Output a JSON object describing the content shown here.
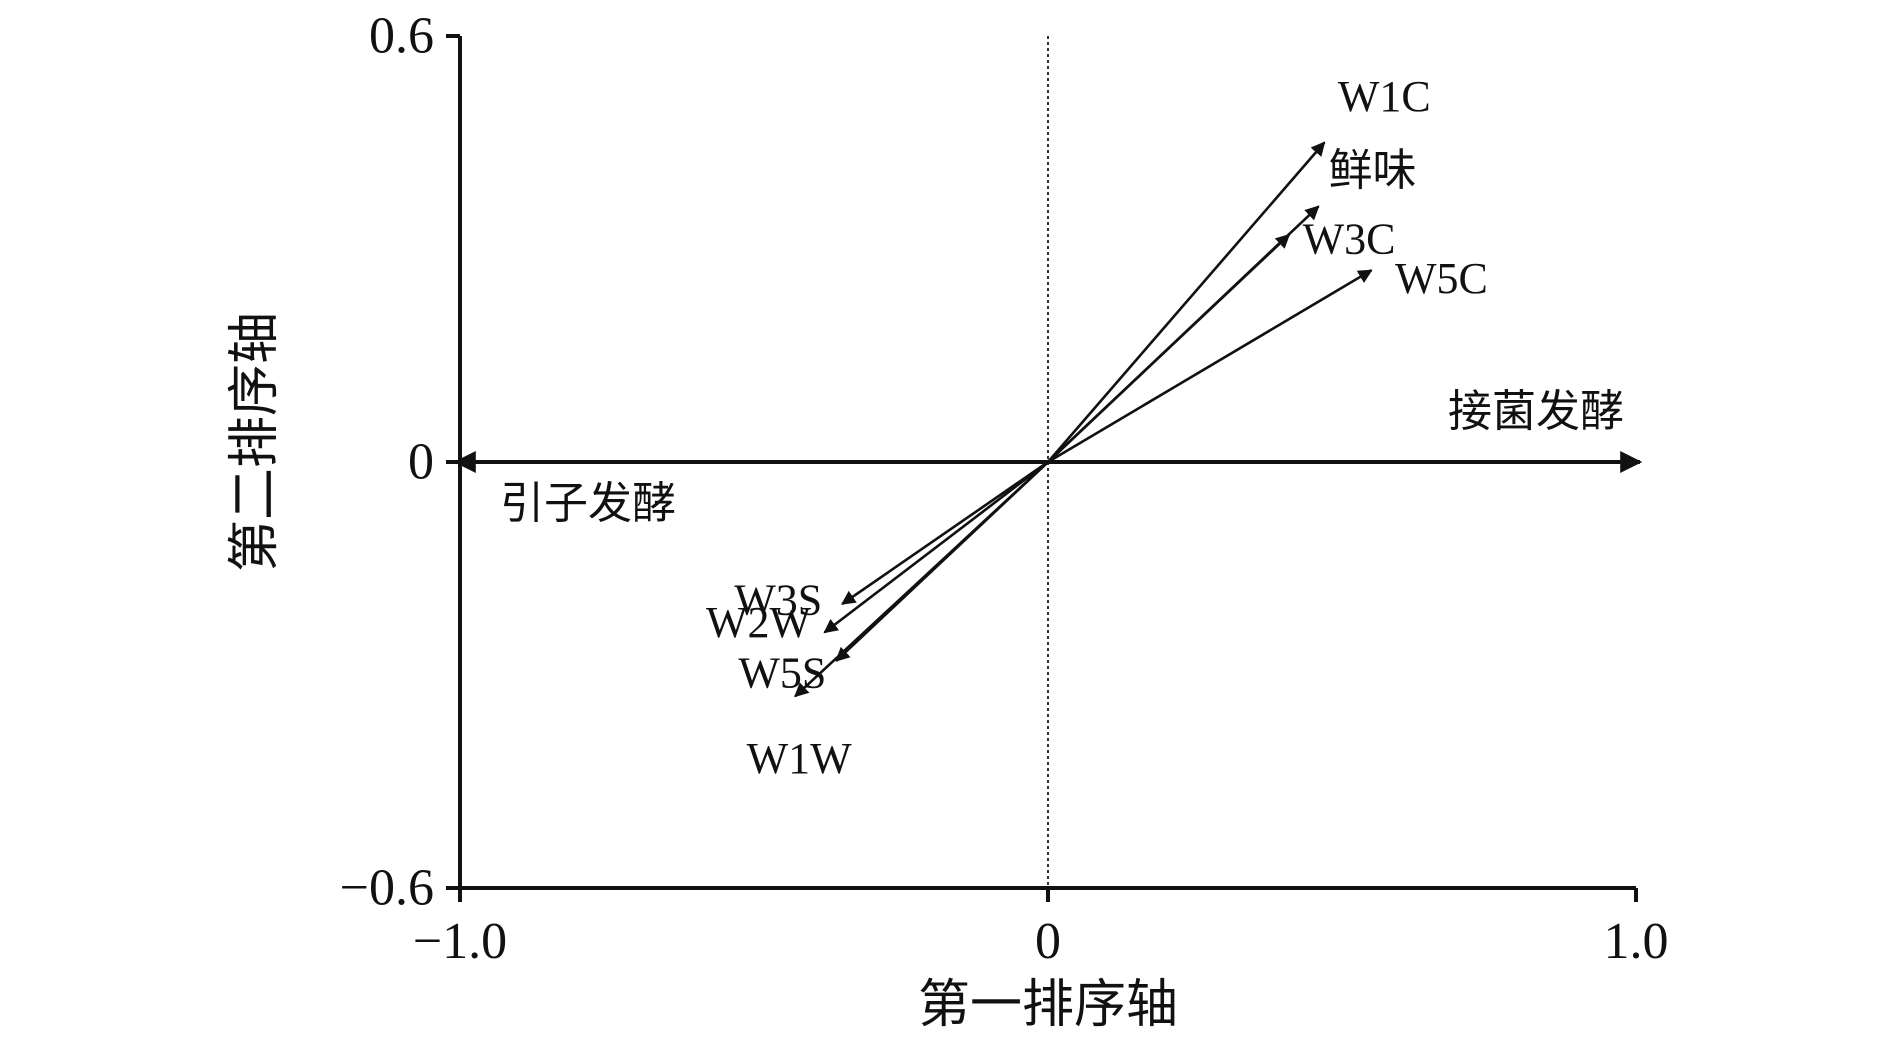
{
  "chart_data": {
    "type": "biplot",
    "xlabel": "第一排序轴",
    "ylabel": "第二排序轴",
    "xlim": [
      -1.0,
      1.0
    ],
    "ylim": [
      -0.6,
      0.6
    ],
    "x_ticks": [
      {
        "value": -1.0,
        "label": "−1.0"
      },
      {
        "value": 0,
        "label": "0"
      },
      {
        "value": 1.0,
        "label": "1.0"
      }
    ],
    "y_ticks": [
      {
        "value": 0.6,
        "label": "0.6"
      },
      {
        "value": 0,
        "label": "0"
      },
      {
        "value": -0.6,
        "label": "−0.6"
      }
    ],
    "grid": false,
    "zero_line": {
      "vertical": "dotted"
    },
    "groups": [
      {
        "name": "接菌发酵",
        "x": 1.0,
        "y": 0
      },
      {
        "name": "引子发酵",
        "x": -1.0,
        "y": 0
      }
    ],
    "vectors": [
      {
        "name": "W1C",
        "x": 0.47,
        "y": 0.45
      },
      {
        "name": "鲜味",
        "x": 0.46,
        "y": 0.36
      },
      {
        "name": "W3C",
        "x": 0.41,
        "y": 0.32
      },
      {
        "name": "W5C",
        "x": 0.55,
        "y": 0.27
      },
      {
        "name": "W3S",
        "x": -0.35,
        "y": -0.2
      },
      {
        "name": "W2W",
        "x": -0.38,
        "y": -0.24
      },
      {
        "name": "W5S",
        "x": -0.36,
        "y": -0.28
      },
      {
        "name": "W1W",
        "x": -0.43,
        "y": -0.33
      }
    ]
  }
}
